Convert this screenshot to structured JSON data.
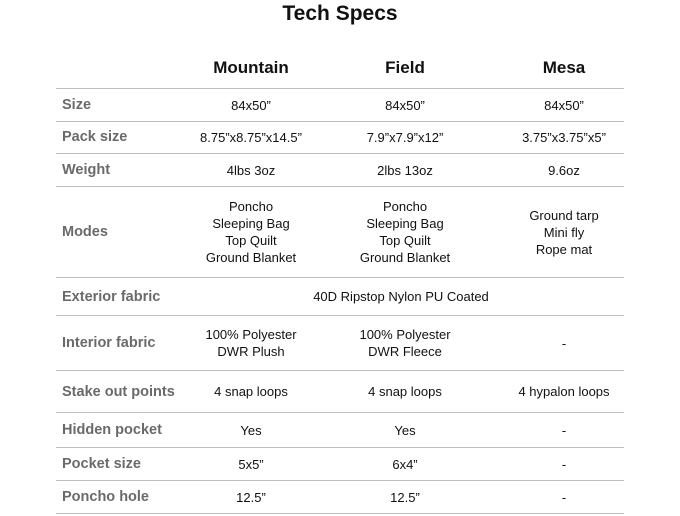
{
  "title": "Tech Specs",
  "columns": [
    "Mountain",
    "Field",
    "Mesa"
  ],
  "rows": [
    {
      "label": "Size",
      "values": [
        [
          "84x50”"
        ],
        [
          "84x50”"
        ],
        [
          "84x50”"
        ]
      ]
    },
    {
      "label": "Pack size",
      "values": [
        [
          "8.75”x8.75”x14.5”"
        ],
        [
          "7.9”x7.9”x12”"
        ],
        [
          "3.75”x3.75”x5”"
        ]
      ]
    },
    {
      "label": "Weight",
      "values": [
        [
          "4lbs 3oz"
        ],
        [
          "2lbs 13oz"
        ],
        [
          "9.6oz"
        ]
      ]
    },
    {
      "label": "Modes",
      "values": [
        [
          "Poncho",
          "Sleeping Bag",
          "Top Quilt",
          "Ground Blanket"
        ],
        [
          "Poncho",
          "Sleeping Bag",
          "Top Quilt",
          "Ground Blanket"
        ],
        [
          "Ground tarp",
          "Mini fly",
          "Rope mat"
        ]
      ]
    },
    {
      "label": "Exterior fabric",
      "span": "40D Ripstop Nylon PU Coated"
    },
    {
      "label": "Interior fabric",
      "values": [
        [
          "100% Polyester",
          "DWR Plush"
        ],
        [
          "100% Polyester",
          "DWR Fleece"
        ],
        [
          "-"
        ]
      ]
    },
    {
      "label": "Stake out points",
      "values": [
        [
          "4 snap loops"
        ],
        [
          "4 snap loops"
        ],
        [
          "4 hypalon loops"
        ]
      ]
    },
    {
      "label": "Hidden pocket",
      "values": [
        [
          "Yes"
        ],
        [
          "Yes"
        ],
        [
          "-"
        ]
      ]
    },
    {
      "label": "Pocket size",
      "values": [
        [
          "5x5”"
        ],
        [
          "6x4”"
        ],
        [
          "-"
        ]
      ]
    },
    {
      "label": "Poncho hole",
      "values": [
        [
          "12.5”"
        ],
        [
          "12.5”"
        ],
        [
          "-"
        ]
      ]
    }
  ]
}
